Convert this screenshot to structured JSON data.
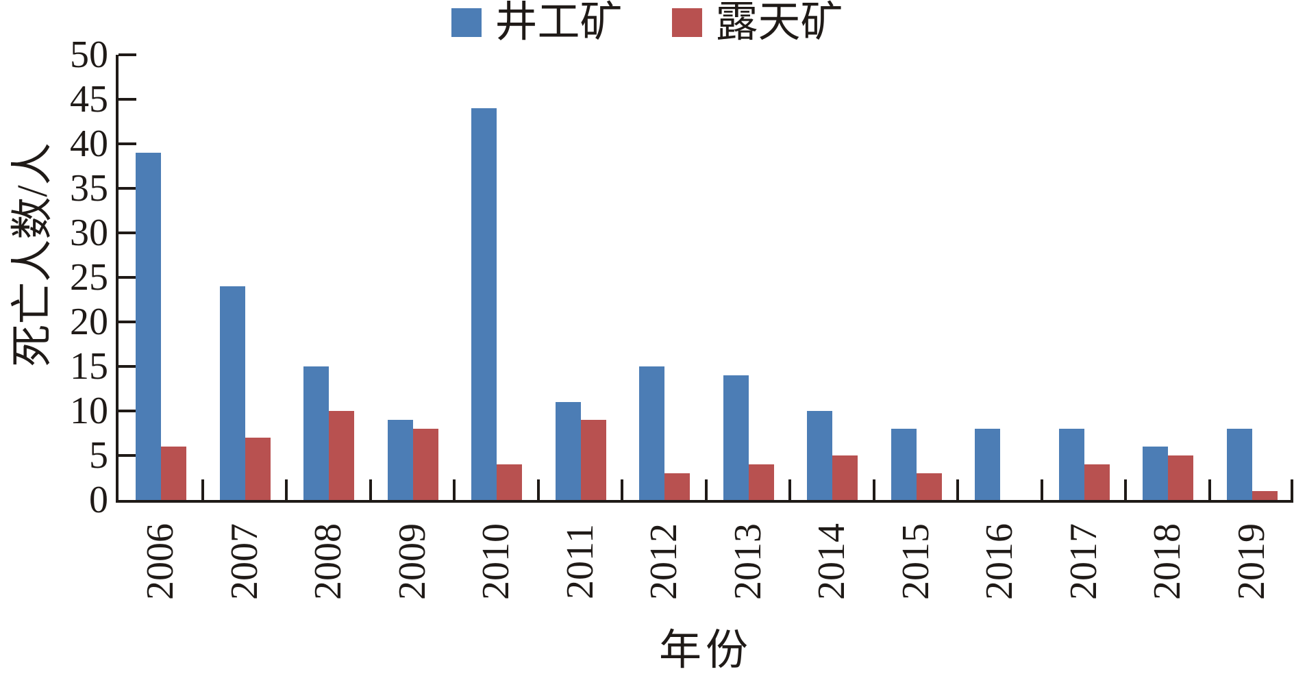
{
  "chart_data": {
    "type": "bar",
    "title": "",
    "categories": [
      "2006",
      "2007",
      "2008",
      "2009",
      "2010",
      "2011",
      "2012",
      "2013",
      "2014",
      "2015",
      "2016",
      "2017",
      "2018",
      "2019"
    ],
    "series": [
      {
        "name": "井工矿",
        "color": "#4C7DB5",
        "values": [
          39,
          24,
          15,
          9,
          44,
          11,
          15,
          14,
          10,
          8,
          8,
          8,
          6,
          8
        ]
      },
      {
        "name": "露天矿",
        "color": "#B85150",
        "values": [
          6,
          7,
          10,
          8,
          4,
          9,
          3,
          4,
          5,
          3,
          0,
          4,
          5,
          1
        ]
      }
    ],
    "xlabel": "年份",
    "ylabel": "死亡人数/人",
    "ylim": [
      0,
      50
    ],
    "ytick_step": 5,
    "yticks": [
      0,
      5,
      10,
      15,
      20,
      25,
      30,
      35,
      40,
      45,
      50
    ],
    "grid": false,
    "legend_position": "top-center",
    "axis_color": "#1f1a17"
  }
}
